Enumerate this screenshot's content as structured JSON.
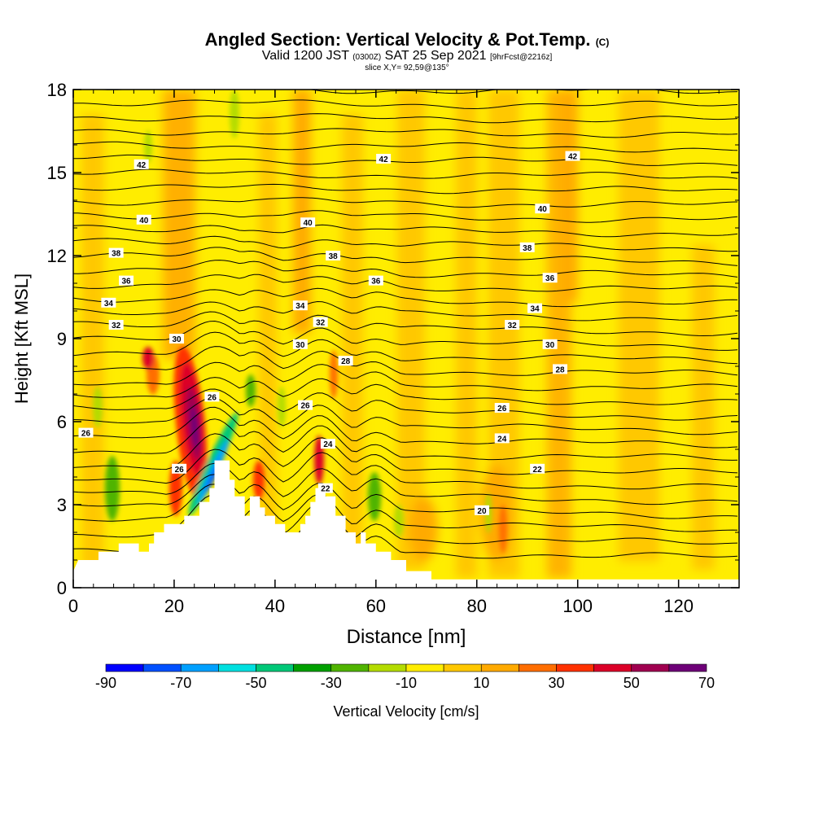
{
  "header": {
    "title": "Angled Section: Vertical Velocity & Pot.Temp.",
    "title_tag": "(C)",
    "valid_main_a": "Valid 1200 JST",
    "valid_small_a": "(0300Z)",
    "valid_main_b": "SAT 25 Sep 2021",
    "valid_small_b": "[9hrFcst@2216z]",
    "slice": "slice X,Y= 92,59@135°"
  },
  "colors": {
    "background_field": "#ffed00",
    "terrain": "#ffffff",
    "contour": "#000000"
  },
  "chart_data": {
    "type": "heatmap",
    "xlabel": "Distance [nm]",
    "ylabel": "Height [Kft MSL]",
    "xlim": [
      0,
      132
    ],
    "ylim": [
      0,
      18
    ],
    "x_ticks": [
      0,
      20,
      40,
      60,
      80,
      100,
      120
    ],
    "y_ticks": [
      0,
      3,
      6,
      9,
      12,
      15,
      18
    ],
    "colorbar": {
      "label": "Vertical Velocity [cm/s]",
      "tick_labels": [
        "-90",
        "-70",
        "-50",
        "-30",
        "-10",
        "10",
        "30",
        "50",
        "70"
      ],
      "bins": [
        {
          "from": -90,
          "to": -80,
          "color": "#0000ff"
        },
        {
          "from": -80,
          "to": -70,
          "color": "#0050ff"
        },
        {
          "from": -70,
          "to": -60,
          "color": "#00a0ff"
        },
        {
          "from": -60,
          "to": -50,
          "color": "#00e0e0"
        },
        {
          "from": -50,
          "to": -40,
          "color": "#00c878"
        },
        {
          "from": -40,
          "to": -30,
          "color": "#00a000"
        },
        {
          "from": -30,
          "to": -20,
          "color": "#50b400"
        },
        {
          "from": -20,
          "to": -10,
          "color": "#b4dc00"
        },
        {
          "from": -10,
          "to": 0,
          "color": "#ffed00"
        },
        {
          "from": 0,
          "to": 10,
          "color": "#ffc800"
        },
        {
          "from": 10,
          "to": 20,
          "color": "#ffaa00"
        },
        {
          "from": 20,
          "to": 30,
          "color": "#ff6e00"
        },
        {
          "from": 30,
          "to": 40,
          "color": "#ff3200"
        },
        {
          "from": 40,
          "to": 50,
          "color": "#dc0028"
        },
        {
          "from": 50,
          "to": 60,
          "color": "#a00050"
        },
        {
          "from": 60,
          "to": 70,
          "color": "#6e0078"
        }
      ]
    },
    "contour_labels": [
      {
        "text": "42",
        "x": 13.5,
        "y": 15.3
      },
      {
        "text": "42",
        "x": 61.5,
        "y": 15.5
      },
      {
        "text": "42",
        "x": 99,
        "y": 15.6
      },
      {
        "text": "40",
        "x": 14,
        "y": 13.3
      },
      {
        "text": "40",
        "x": 46.5,
        "y": 13.2
      },
      {
        "text": "40",
        "x": 93,
        "y": 13.7
      },
      {
        "text": "38",
        "x": 8.5,
        "y": 12.1
      },
      {
        "text": "38",
        "x": 51.5,
        "y": 12.0
      },
      {
        "text": "38",
        "x": 90,
        "y": 12.3
      },
      {
        "text": "36",
        "x": 10.5,
        "y": 11.1
      },
      {
        "text": "36",
        "x": 60,
        "y": 11.1
      },
      {
        "text": "36",
        "x": 94.5,
        "y": 11.2
      },
      {
        "text": "34",
        "x": 7,
        "y": 10.3
      },
      {
        "text": "34",
        "x": 45,
        "y": 10.2
      },
      {
        "text": "34",
        "x": 91.5,
        "y": 10.1
      },
      {
        "text": "32",
        "x": 8.5,
        "y": 9.5
      },
      {
        "text": "32",
        "x": 49,
        "y": 9.6
      },
      {
        "text": "32",
        "x": 87,
        "y": 9.5
      },
      {
        "text": "30",
        "x": 20.5,
        "y": 9.0
      },
      {
        "text": "30",
        "x": 45,
        "y": 8.8
      },
      {
        "text": "30",
        "x": 94.5,
        "y": 8.8
      },
      {
        "text": "28",
        "x": 54,
        "y": 8.2
      },
      {
        "text": "28",
        "x": 96.5,
        "y": 7.9
      },
      {
        "text": "26",
        "x": 27.5,
        "y": 6.9
      },
      {
        "text": "26",
        "x": 46,
        "y": 6.6
      },
      {
        "text": "26",
        "x": 85,
        "y": 6.5
      },
      {
        "text": "26",
        "x": 2.5,
        "y": 5.6
      },
      {
        "text": "24",
        "x": 50.5,
        "y": 5.2
      },
      {
        "text": "24",
        "x": 85,
        "y": 5.4
      },
      {
        "text": "22",
        "x": 92,
        "y": 4.3
      },
      {
        "text": "22",
        "x": 50,
        "y": 3.6
      },
      {
        "text": "20",
        "x": 81,
        "y": 2.8
      },
      {
        "text": "26",
        "x": 21,
        "y": 4.3
      }
    ]
  }
}
